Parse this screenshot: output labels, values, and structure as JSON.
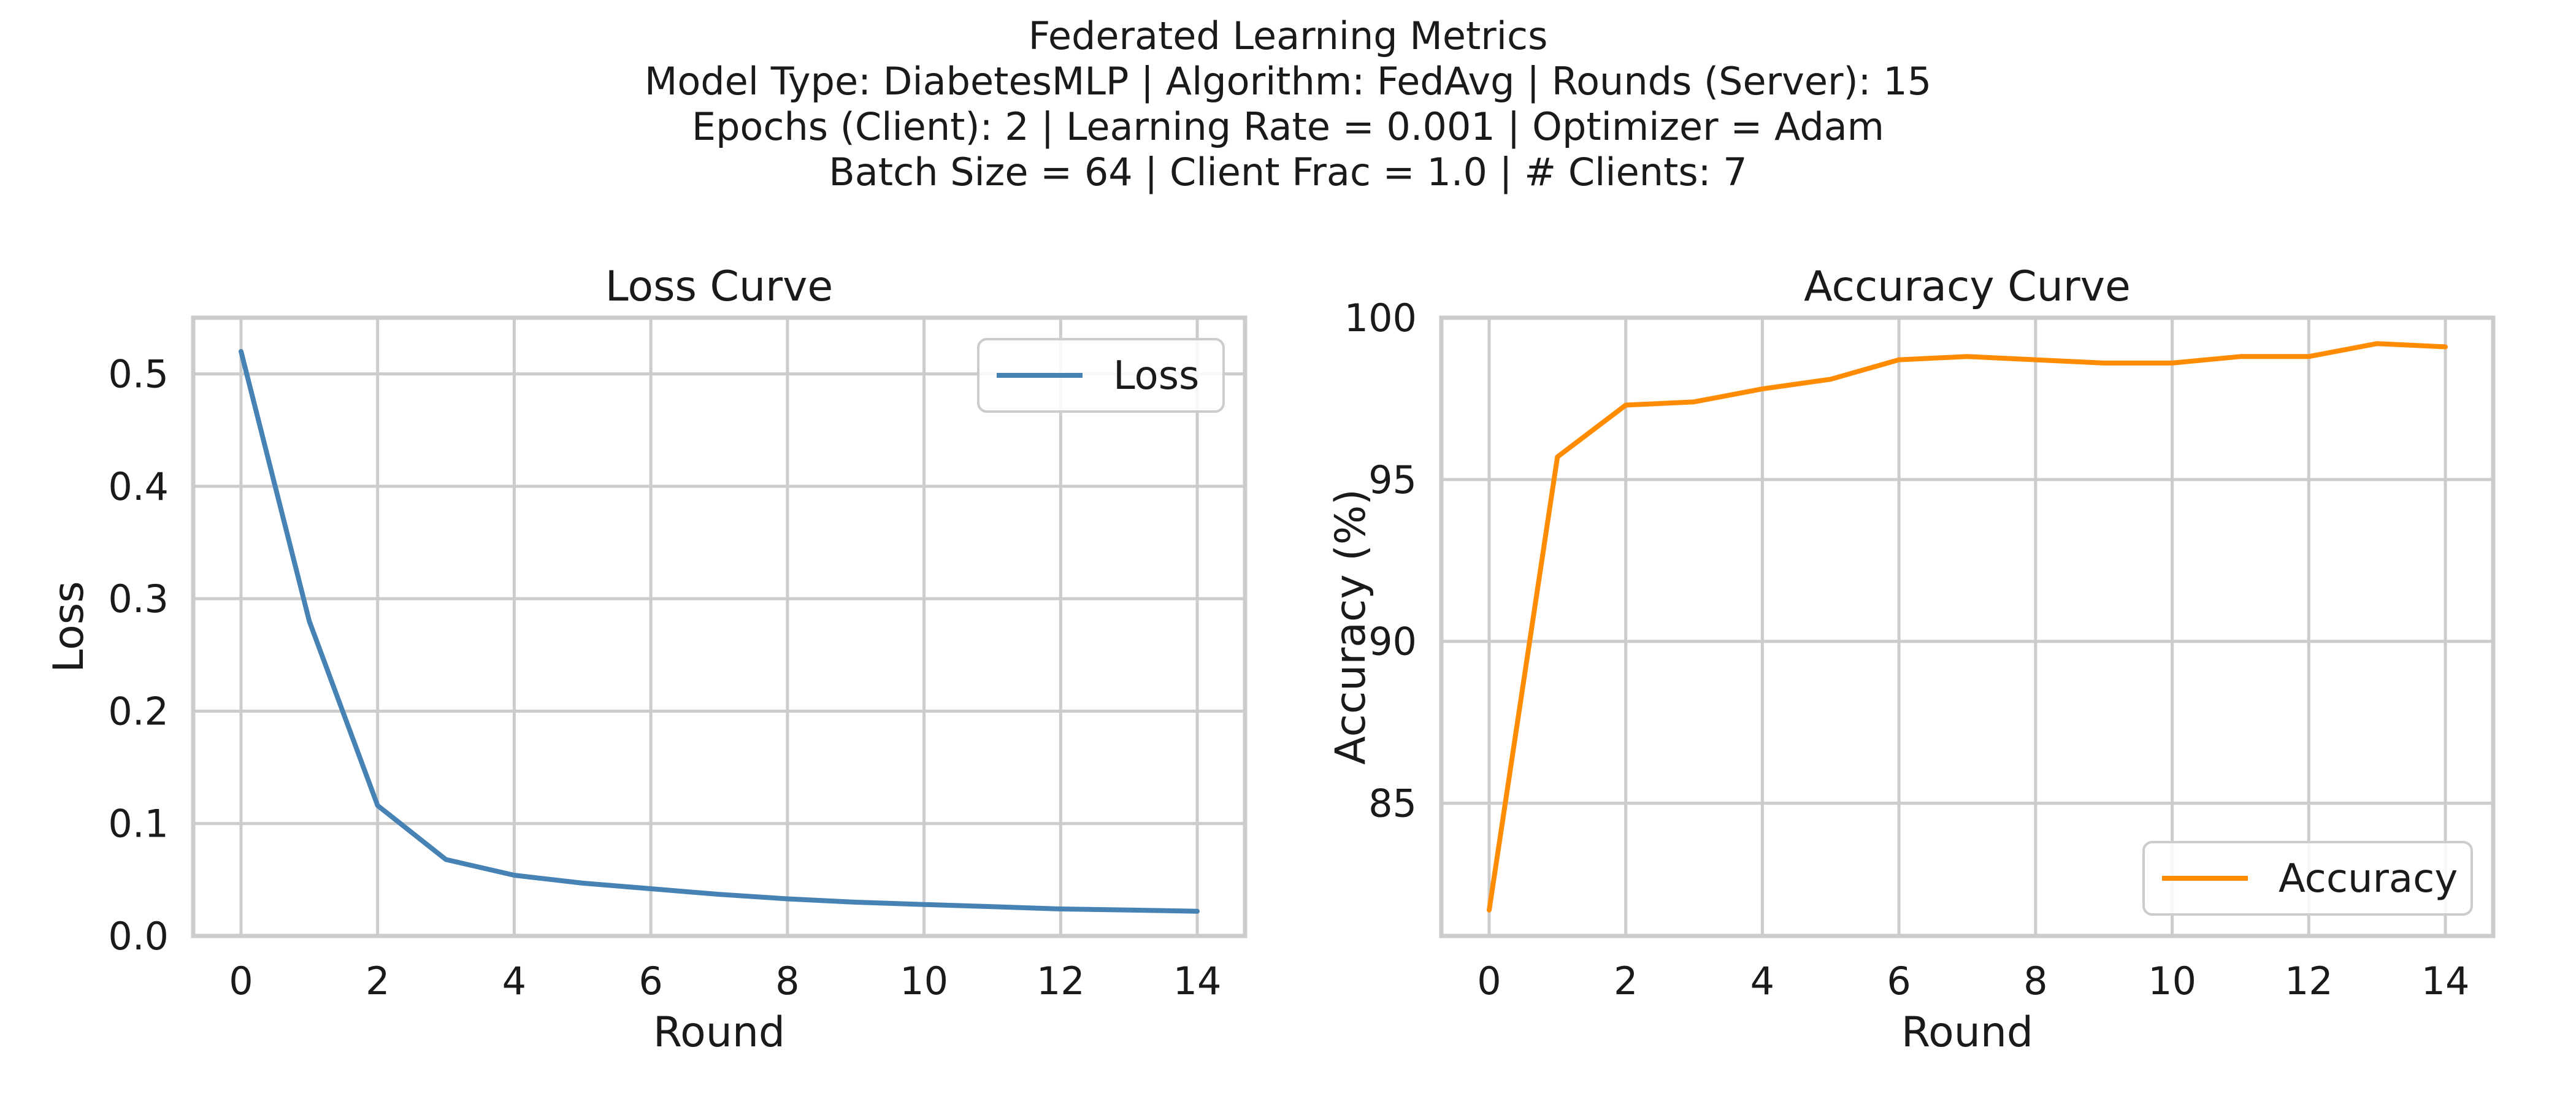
{
  "suptitle": {
    "line1": "Federated Learning Metrics",
    "line2": "Model Type: DiabetesMLP | Algorithm: FedAvg | Rounds (Server): 15",
    "line3": "Epochs (Client): 2 | Learning Rate = 0.001 | Optimizer = Adam",
    "line4": "Batch Size = 64 | Client Frac = 1.0 | # Clients: 7"
  },
  "chart_data": [
    {
      "type": "line",
      "title": "Loss Curve",
      "xlabel": "Round",
      "ylabel": "Loss",
      "xlim": [
        -0.7,
        14.7
      ],
      "ylim": [
        0,
        0.55
      ],
      "xticks": [
        0,
        2,
        4,
        6,
        8,
        10,
        12,
        14
      ],
      "yticks": [
        0.0,
        0.1,
        0.2,
        0.3,
        0.4,
        0.5
      ],
      "ytick_labels": [
        "0.0",
        "0.1",
        "0.2",
        "0.3",
        "0.4",
        "0.5"
      ],
      "grid": true,
      "legend": "top-right",
      "series": [
        {
          "name": "Loss",
          "color": "#4682b4",
          "x": [
            0,
            1,
            2,
            3,
            4,
            5,
            6,
            7,
            8,
            9,
            10,
            11,
            12,
            13,
            14
          ],
          "y": [
            0.52,
            0.28,
            0.116,
            0.068,
            0.054,
            0.047,
            0.042,
            0.037,
            0.033,
            0.03,
            0.028,
            0.026,
            0.024,
            0.023,
            0.022
          ]
        }
      ]
    },
    {
      "type": "line",
      "title": "Accuracy Curve",
      "xlabel": "Round",
      "ylabel": "Accuracy (%)",
      "xlim": [
        -0.7,
        14.7
      ],
      "ylim": [
        80.9,
        100.0
      ],
      "xticks": [
        0,
        2,
        4,
        6,
        8,
        10,
        12,
        14
      ],
      "yticks": [
        85,
        90,
        95,
        100
      ],
      "ytick_labels": [
        "85",
        "90",
        "95",
        "100"
      ],
      "grid": true,
      "legend": "bottom-right",
      "series": [
        {
          "name": "Accuracy",
          "color": "#ff8c00",
          "x": [
            0,
            1,
            2,
            3,
            4,
            5,
            6,
            7,
            8,
            9,
            10,
            11,
            12,
            13,
            14
          ],
          "y": [
            81.7,
            95.7,
            97.3,
            97.4,
            97.8,
            98.1,
            98.7,
            98.8,
            98.7,
            98.6,
            98.6,
            98.8,
            98.8,
            99.2,
            99.1
          ]
        }
      ]
    }
  ]
}
